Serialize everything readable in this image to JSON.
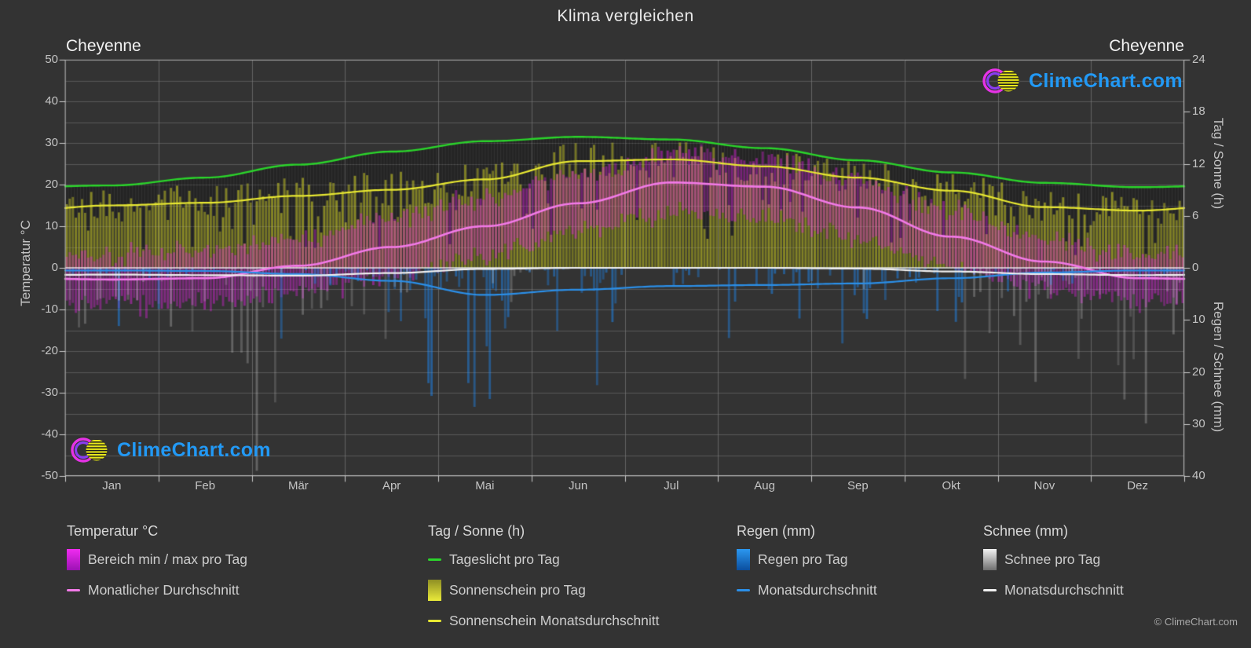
{
  "title": "Klima vergleichen",
  "station_left": "Cheyenne",
  "station_right": "Cheyenne",
  "watermark": {
    "text": "ClimeChart.com"
  },
  "copyright": "© ClimeChart.com",
  "axes": {
    "left": {
      "label": "Temperatur °C",
      "ticks": [
        50,
        40,
        30,
        20,
        10,
        0,
        -10,
        -20,
        -30,
        -40,
        -50
      ]
    },
    "right_top": {
      "label": "Tag / Sonne (h)",
      "ticks": [
        24,
        18,
        12,
        6,
        0
      ]
    },
    "right_bottom": {
      "label": "Regen / Schnee (mm)",
      "ticks": [
        10,
        20,
        30,
        40
      ]
    },
    "x": {
      "months": [
        "Jan",
        "Feb",
        "Mär",
        "Apr",
        "Mai",
        "Jun",
        "Jul",
        "Aug",
        "Sep",
        "Okt",
        "Nov",
        "Dez"
      ]
    }
  },
  "legend": {
    "sections": [
      {
        "title": "Temperatur °C",
        "items": [
          {
            "swatch": "bar",
            "color_key": "temp",
            "label": "Bereich min / max pro Tag"
          },
          {
            "swatch": "line",
            "color_key": "temp_line",
            "label": "Monatlicher Durchschnitt"
          }
        ]
      },
      {
        "title": "Tag / Sonne (h)",
        "items": [
          {
            "swatch": "line",
            "color_key": "daylight_line",
            "label": "Tageslicht pro Tag"
          },
          {
            "swatch": "bar",
            "color_key": "sun",
            "label": "Sonnenschein pro Tag"
          },
          {
            "swatch": "line",
            "color_key": "sun_line",
            "label": "Sonnenschein Monatsdurchschnitt"
          }
        ]
      },
      {
        "title": "Regen (mm)",
        "items": [
          {
            "swatch": "bar",
            "color_key": "rain",
            "label": "Regen pro Tag"
          },
          {
            "swatch": "line",
            "color_key": "rain_line",
            "label": "Monatsdurchschnitt"
          }
        ]
      },
      {
        "title": "Schnee (mm)",
        "items": [
          {
            "swatch": "bar",
            "color_key": "snow",
            "label": "Schnee pro Tag"
          },
          {
            "swatch": "line",
            "color_key": "snow_line",
            "label": "Monatsdurchschnitt"
          }
        ]
      }
    ]
  },
  "colors": {
    "background": "#333333",
    "grid": "#4a4a4a",
    "frame": "#b5b5b5",
    "zero_line": "#f0f0f0",
    "temp_bar_top": "#f02bf0",
    "temp_bar_bottom": "#9c12b4",
    "sun_bar_top": "#8f8f24",
    "sun_bar_bottom": "#eaea3a",
    "rain_bar_top": "#2b97f0",
    "rain_bar_bottom": "#0b4e9e",
    "snow_bar_top": "#f2f2f2",
    "snow_bar_bottom": "#6f6f6f",
    "temp_line": "#f27ae8",
    "daylight_line": "#2bd42b",
    "sun_line": "#e8e832",
    "rain_line": "#2b8fe8",
    "snow_line": "#f0f0f0",
    "watermark_blue": "#2299f5",
    "logo_magenta": "#e632e6",
    "logo_violet": "#8a3cf0",
    "logo_yellow": "#e8e81a"
  },
  "chart_data": {
    "type": "area",
    "description": "Klimadiagramm Cheyenne: tägliche Balken (Temperaturbereich, Sonnenschein, Regen, Schnee) mit Monatsmittel-Linien",
    "months": [
      "Jan",
      "Feb",
      "Mär",
      "Apr",
      "Mai",
      "Jun",
      "Jul",
      "Aug",
      "Sep",
      "Okt",
      "Nov",
      "Dez"
    ],
    "axis_ranges": {
      "temperature_c": [
        -50,
        50
      ],
      "day_sun_h": [
        0,
        24
      ],
      "rain_snow_mm": [
        0,
        40
      ]
    },
    "series": [
      {
        "name": "Tageslicht pro Tag (h)",
        "type": "line",
        "color_key": "daylight_line",
        "values": [
          9.5,
          10.4,
          11.9,
          13.4,
          14.6,
          15.1,
          14.8,
          13.8,
          12.4,
          11.0,
          9.8,
          9.3
        ]
      },
      {
        "name": "Sonnenschein Monatsdurchschnitt (h)",
        "type": "line",
        "color_key": "sun_line",
        "values": [
          7.2,
          7.5,
          8.3,
          9.0,
          10.2,
          12.3,
          12.5,
          11.7,
          10.4,
          8.9,
          7.0,
          6.6
        ]
      },
      {
        "name": "Monatlicher Durchschnitt Temperatur (°C)",
        "type": "line",
        "color_key": "temp_line",
        "values": [
          -2.8,
          -2.5,
          0.5,
          5.0,
          10.0,
          15.5,
          20.5,
          19.5,
          14.5,
          7.5,
          1.5,
          -2.5
        ]
      },
      {
        "name": "Temperatur max pro Tag Mittel (°C)",
        "type": "bar-range-top",
        "color_key": "temp",
        "values": [
          3,
          4,
          7,
          12,
          17,
          23,
          27,
          26,
          21,
          14,
          7,
          3
        ]
      },
      {
        "name": "Temperatur min pro Tag Mittel (°C)",
        "type": "bar-range-bottom",
        "color_key": "temp",
        "values": [
          -9,
          -8.5,
          -6,
          -2,
          3,
          9,
          13,
          12,
          7,
          0,
          -5,
          -8
        ]
      },
      {
        "name": "Regen Monatsdurchschnitt (mm)",
        "type": "line",
        "color_key": "rain_line",
        "values": [
          0.5,
          0.6,
          1.2,
          2.5,
          5.2,
          4.2,
          3.5,
          3.3,
          3.0,
          2.0,
          0.9,
          0.5
        ]
      },
      {
        "name": "Schnee Monatsdurchschnitt (mm)",
        "type": "line",
        "color_key": "snow_line",
        "values": [
          1.3,
          1.4,
          1.5,
          1.0,
          0.2,
          0,
          0,
          0,
          0.15,
          0.7,
          1.2,
          1.4
        ]
      }
    ],
    "daily_simulation": {
      "seed": 42,
      "sun_daily_sigma_h": 2.1,
      "temp_daily_sigma_c": 3.8,
      "rain_probability": [
        0.25,
        0.25,
        0.35,
        0.5,
        0.65,
        0.55,
        0.5,
        0.5,
        0.4,
        0.35,
        0.25,
        0.22
      ],
      "rain_depth_mean_mm": [
        1.5,
        1.5,
        2.5,
        4.0,
        7.0,
        6.0,
        5.0,
        5.0,
        4.0,
        3.5,
        1.8,
        1.5
      ],
      "snow_probability": [
        0.5,
        0.5,
        0.45,
        0.3,
        0.1,
        0,
        0,
        0,
        0.06,
        0.25,
        0.42,
        0.5
      ],
      "snow_depth_mean_mm": [
        9,
        9,
        8,
        6,
        3,
        0,
        0,
        0,
        2,
        6,
        8,
        9
      ]
    }
  }
}
